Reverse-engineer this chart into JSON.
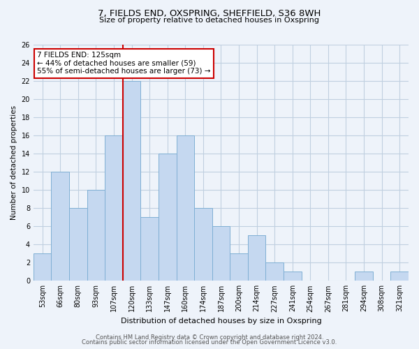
{
  "title": "7, FIELDS END, OXSPRING, SHEFFIELD, S36 8WH",
  "subtitle": "Size of property relative to detached houses in Oxspring",
  "xlabel": "Distribution of detached houses by size in Oxspring",
  "ylabel": "Number of detached properties",
  "bar_labels": [
    "53sqm",
    "66sqm",
    "80sqm",
    "93sqm",
    "107sqm",
    "120sqm",
    "133sqm",
    "147sqm",
    "160sqm",
    "174sqm",
    "187sqm",
    "200sqm",
    "214sqm",
    "227sqm",
    "241sqm",
    "254sqm",
    "267sqm",
    "281sqm",
    "294sqm",
    "308sqm",
    "321sqm"
  ],
  "bar_values": [
    3,
    12,
    8,
    10,
    16,
    22,
    7,
    14,
    16,
    8,
    6,
    3,
    5,
    2,
    1,
    0,
    0,
    0,
    1,
    0,
    1
  ],
  "bar_color": "#c5d8f0",
  "bar_edgecolor": "#7fafd4",
  "vline_x": 4.5,
  "vline_color": "#cc0000",
  "annotation_title": "7 FIELDS END: 125sqm",
  "annotation_line1": "← 44% of detached houses are smaller (59)",
  "annotation_line2": "55% of semi-detached houses are larger (73) →",
  "annotation_box_edgecolor": "#cc0000",
  "ylim": [
    0,
    26
  ],
  "yticks": [
    0,
    2,
    4,
    6,
    8,
    10,
    12,
    14,
    16,
    18,
    20,
    22,
    24,
    26
  ],
  "footer1": "Contains HM Land Registry data © Crown copyright and database right 2024.",
  "footer2": "Contains public sector information licensed under the Open Government Licence v3.0.",
  "bg_color": "#eef3fa",
  "grid_color": "#c0cfe0",
  "title_fontsize": 9.5,
  "subtitle_fontsize": 8,
  "ylabel_fontsize": 7.5,
  "xlabel_fontsize": 8,
  "tick_fontsize": 7,
  "annotation_fontsize": 7.5
}
